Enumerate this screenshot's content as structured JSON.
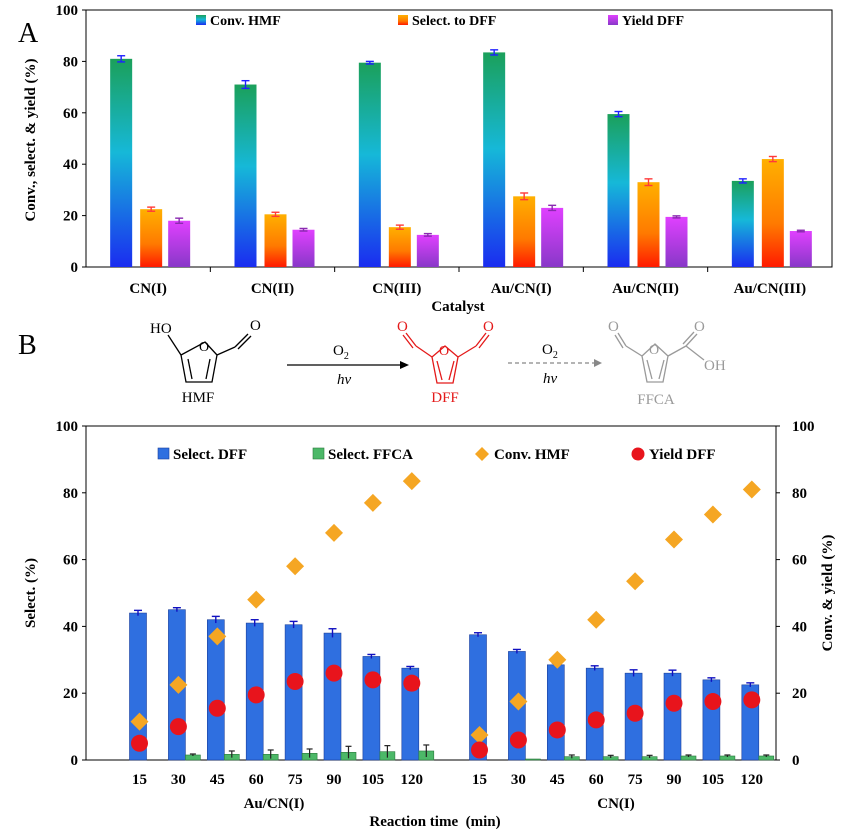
{
  "panels": {
    "a_label": "A",
    "b_label": "B"
  },
  "scheme": {
    "hmf": {
      "label": "HMF",
      "oh": "HO",
      "o_ring": "O",
      "o_ald": "O"
    },
    "step1": {
      "top": "O",
      "sub": "2",
      "bottom": "hν"
    },
    "dff": {
      "label": "DFF",
      "o_ring": "O",
      "o_left": "O",
      "o_right": "O"
    },
    "step2": {
      "top": "O",
      "sub": "2",
      "bottom": "hν"
    },
    "ffca": {
      "label": "FFCA",
      "o_ring": "O",
      "o_ald": "O",
      "o_acid": "O",
      "oh": "OH"
    }
  },
  "colors": {
    "conv_grad": [
      "#1ba05a",
      "#16b8d8",
      "#1a2cf0"
    ],
    "sel_grad": [
      "#ffb000",
      "#ff7a00",
      "#ff1a00"
    ],
    "yield_grad": [
      "#e040ff",
      "#b040e0",
      "#8838c8"
    ],
    "sel_dff": "#2f6fe0",
    "sel_ffca": "#4cb868",
    "conv_hmf": "#f5a623",
    "yield_dff": "#e8141c",
    "err_conv": "#2020ff",
    "err_sel": "#ff3a3a",
    "err_yield": "#8a2ab0"
  },
  "chart_data": [
    {
      "type": "bar",
      "title": "",
      "xlabel": "Catalyst",
      "ylabel": "Conv., select. & yield (%)",
      "ylim": [
        0,
        100
      ],
      "yticks": [
        "0",
        "20",
        "40",
        "60",
        "80",
        "100"
      ],
      "yticks_val": [
        0,
        20,
        40,
        60,
        80,
        100
      ],
      "grid": false,
      "legend_position": "top",
      "categories": [
        "CN(I)",
        "CN(II)",
        "CN(III)",
        "Au/CN(I)",
        "Au/CN(II)",
        "Au/CN(III)"
      ],
      "series": [
        {
          "name": "Conv. HMF",
          "values": [
            81,
            71,
            79.5,
            83.5,
            59.5,
            33.5
          ],
          "errors": [
            1.2,
            1.5,
            0.5,
            1.0,
            1.0,
            0.8
          ]
        },
        {
          "name": "Select. to DFF",
          "values": [
            22.5,
            20.5,
            15.5,
            27.5,
            33,
            42
          ],
          "errors": [
            0.8,
            0.8,
            0.8,
            1.3,
            1.3,
            1.0
          ]
        },
        {
          "name": "Yield DFF",
          "values": [
            18,
            14.5,
            12.5,
            23,
            19.5,
            14
          ],
          "errors": [
            1.0,
            0.5,
            0.5,
            1.0,
            0.4,
            0.3
          ]
        }
      ]
    },
    {
      "type": "bar",
      "title": "",
      "xlabel": "Reaction time  (min)",
      "ylabel": "Select. (%)",
      "y2label": "Conv. & yield (%)",
      "ylim": [
        0,
        100
      ],
      "y2lim": [
        0,
        100
      ],
      "yticks": [
        "0",
        "20",
        "40",
        "60",
        "80",
        "100"
      ],
      "yticks_val": [
        0,
        20,
        40,
        60,
        80,
        100
      ],
      "grid": false,
      "legend_position": "top",
      "groups": [
        {
          "name": "Au/CN(I)",
          "x": [
            "15",
            "30",
            "45",
            "60",
            "75",
            "90",
            "105",
            "120"
          ],
          "series": [
            {
              "name": "Select. DFF",
              "kind": "bar",
              "values": [
                44,
                45,
                42,
                41,
                40.5,
                38,
                31,
                27.5
              ],
              "errors": [
                0.8,
                0.6,
                1.0,
                1.0,
                1.0,
                1.3,
                0.6,
                0.5
              ]
            },
            {
              "name": "Select. FFCA",
              "kind": "bar",
              "values": [
                0,
                1.5,
                1.7,
                1.7,
                2,
                2.3,
                2.5,
                2.7
              ],
              "errors": [
                0,
                0.3,
                1.0,
                1.3,
                1.3,
                1.8,
                1.8,
                1.8
              ]
            },
            {
              "name": "Conv. HMF",
              "kind": "diamond",
              "values": [
                11.5,
                22.5,
                37,
                48,
                58,
                68,
                77,
                83.5
              ]
            },
            {
              "name": "Yield DFF",
              "kind": "circle",
              "values": [
                5,
                10,
                15.5,
                19.5,
                23.5,
                26,
                24,
                23
              ]
            }
          ]
        },
        {
          "name": "CN(I)",
          "x": [
            "15",
            "30",
            "45",
            "60",
            "75",
            "90",
            "105",
            "120"
          ],
          "series": [
            {
              "name": "Select. DFF",
              "kind": "bar",
              "values": [
                37.5,
                32.5,
                28.5,
                27.5,
                26,
                26,
                24,
                22.5
              ],
              "errors": [
                0.6,
                0.6,
                0.5,
                0.7,
                1.0,
                0.9,
                0.6,
                0.6
              ]
            },
            {
              "name": "Select. FFCA",
              "kind": "bar",
              "values": [
                0,
                0.3,
                1,
                1,
                1,
                1.2,
                1.2,
                1.2
              ],
              "errors": [
                0,
                0,
                0.5,
                0.4,
                0.4,
                0.3,
                0.3,
                0.3
              ]
            },
            {
              "name": "Conv. HMF",
              "kind": "diamond",
              "values": [
                7.5,
                17.5,
                30,
                42,
                53.5,
                66,
                73.5,
                81
              ]
            },
            {
              "name": "Yield DFF",
              "kind": "circle",
              "values": [
                3,
                6,
                9,
                12,
                14,
                17,
                17.5,
                18
              ]
            }
          ]
        }
      ]
    }
  ]
}
